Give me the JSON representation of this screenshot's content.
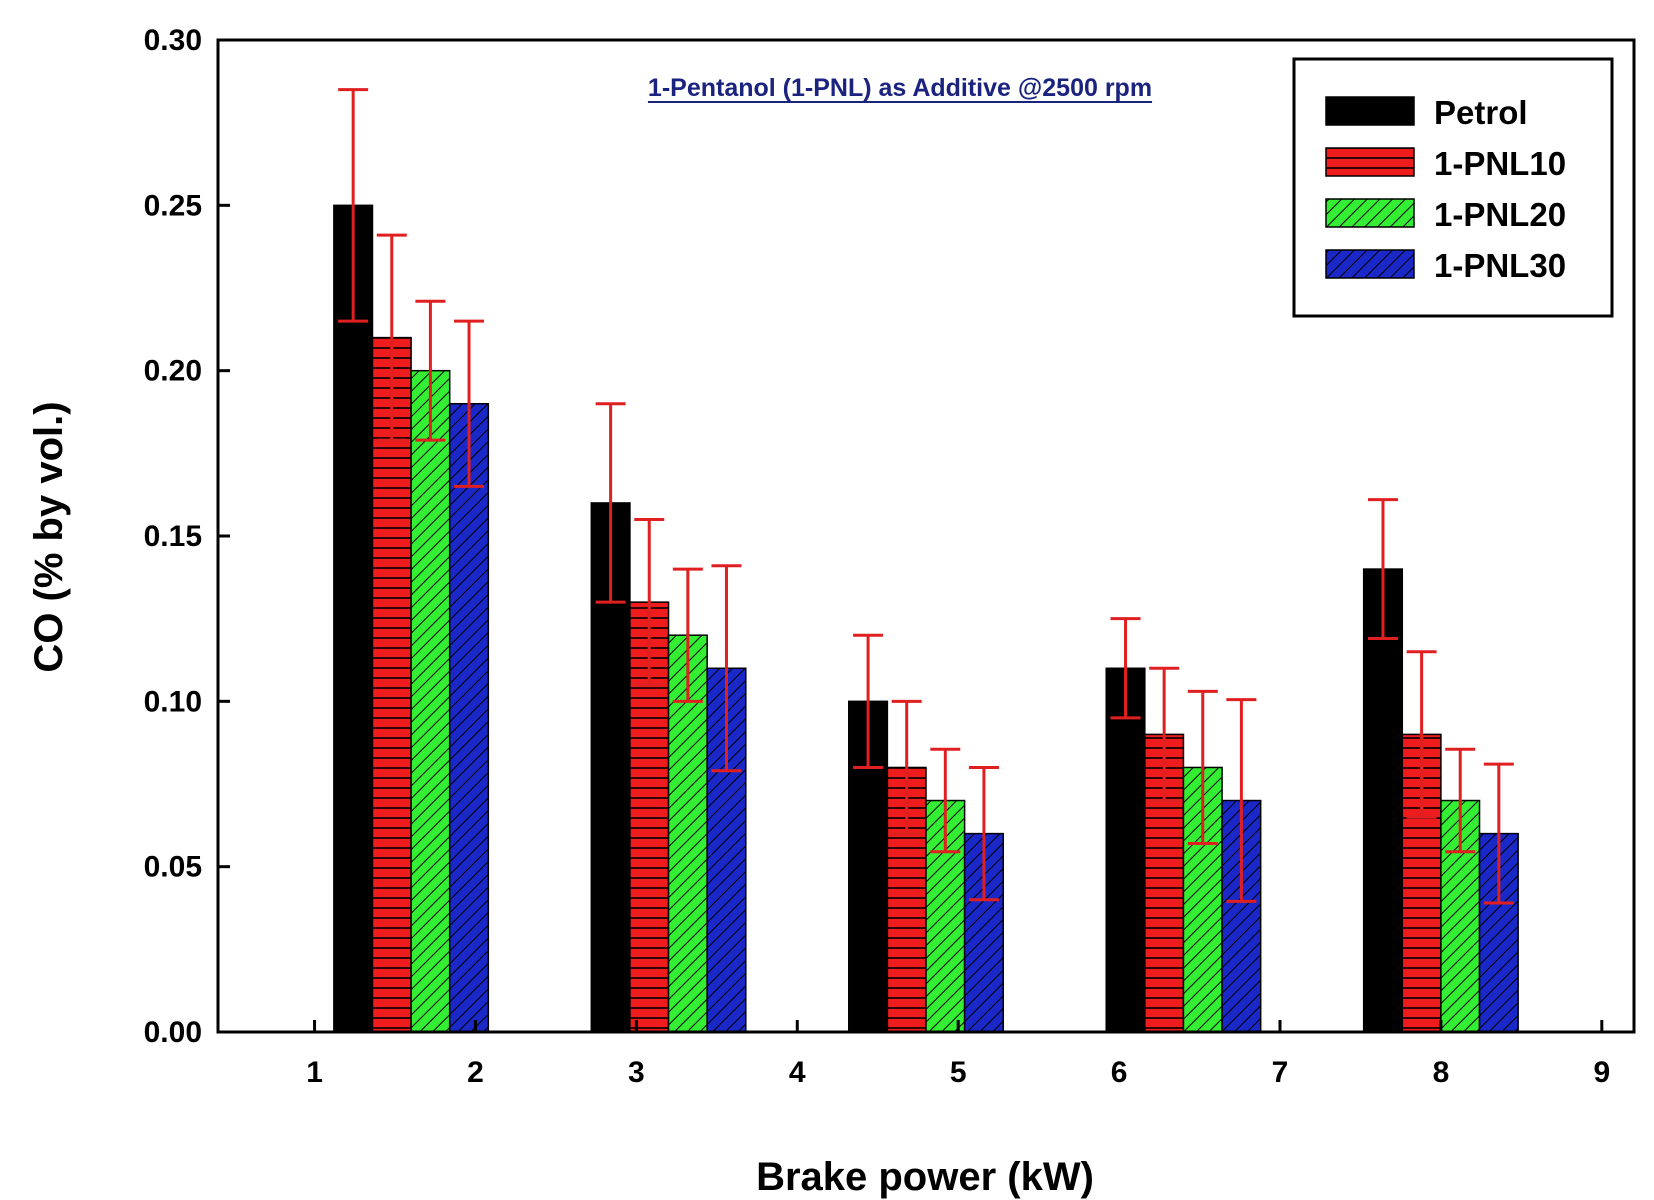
{
  "chart_data": {
    "type": "bar",
    "title": "",
    "annotation": "1-Pentanol (1-PNL) as Additive @2500 rpm",
    "xlabel": "Brake power (kW)",
    "ylabel": "CO (% by vol.)",
    "xlim": [
      0.4,
      9.2
    ],
    "ylim": [
      0,
      0.3
    ],
    "x_ticks": [
      "1",
      "2",
      "3",
      "4",
      "5",
      "6",
      "7",
      "8",
      "9"
    ],
    "x_tick_values": [
      1,
      2,
      3,
      4,
      5,
      6,
      7,
      8,
      9
    ],
    "y_ticks": [
      "0.00",
      "0.05",
      "0.10",
      "0.15",
      "0.20",
      "0.25",
      "0.30"
    ],
    "y_tick_values": [
      0,
      0.05,
      0.1,
      0.15,
      0.2,
      0.25,
      0.3
    ],
    "group_centers": [
      1.6,
      3.2,
      4.8,
      6.4,
      8.0
    ],
    "bar_width": 0.24,
    "legend_position": "top-right",
    "series": [
      {
        "name": "Petrol",
        "color": "#000000",
        "pattern": "solid",
        "values": [
          0.25,
          0.16,
          0.1,
          0.11,
          0.14
        ],
        "errors": [
          0.035,
          0.03,
          0.02,
          0.015,
          0.021
        ]
      },
      {
        "name": "1-PNL10",
        "color": "#ee1c1c",
        "pattern": "horizontal-lines",
        "values": [
          0.21,
          0.13,
          0.08,
          0.09,
          0.09
        ],
        "errors": [
          0.031,
          0.025,
          0.02,
          0.02,
          0.025
        ]
      },
      {
        "name": "1-PNL20",
        "color": "#33ee33",
        "pattern": "diagonal-lines",
        "values": [
          0.2,
          0.12,
          0.07,
          0.08,
          0.07
        ],
        "errors": [
          0.021,
          0.02,
          0.0155,
          0.023,
          0.0155
        ]
      },
      {
        "name": "1-PNL30",
        "color": "#1a28c8",
        "pattern": "diagonal-lines",
        "values": [
          0.19,
          0.11,
          0.06,
          0.07,
          0.06
        ],
        "errors": [
          0.025,
          0.031,
          0.02,
          0.0305,
          0.021
        ]
      }
    ],
    "error_bar_color": "#e02020"
  }
}
